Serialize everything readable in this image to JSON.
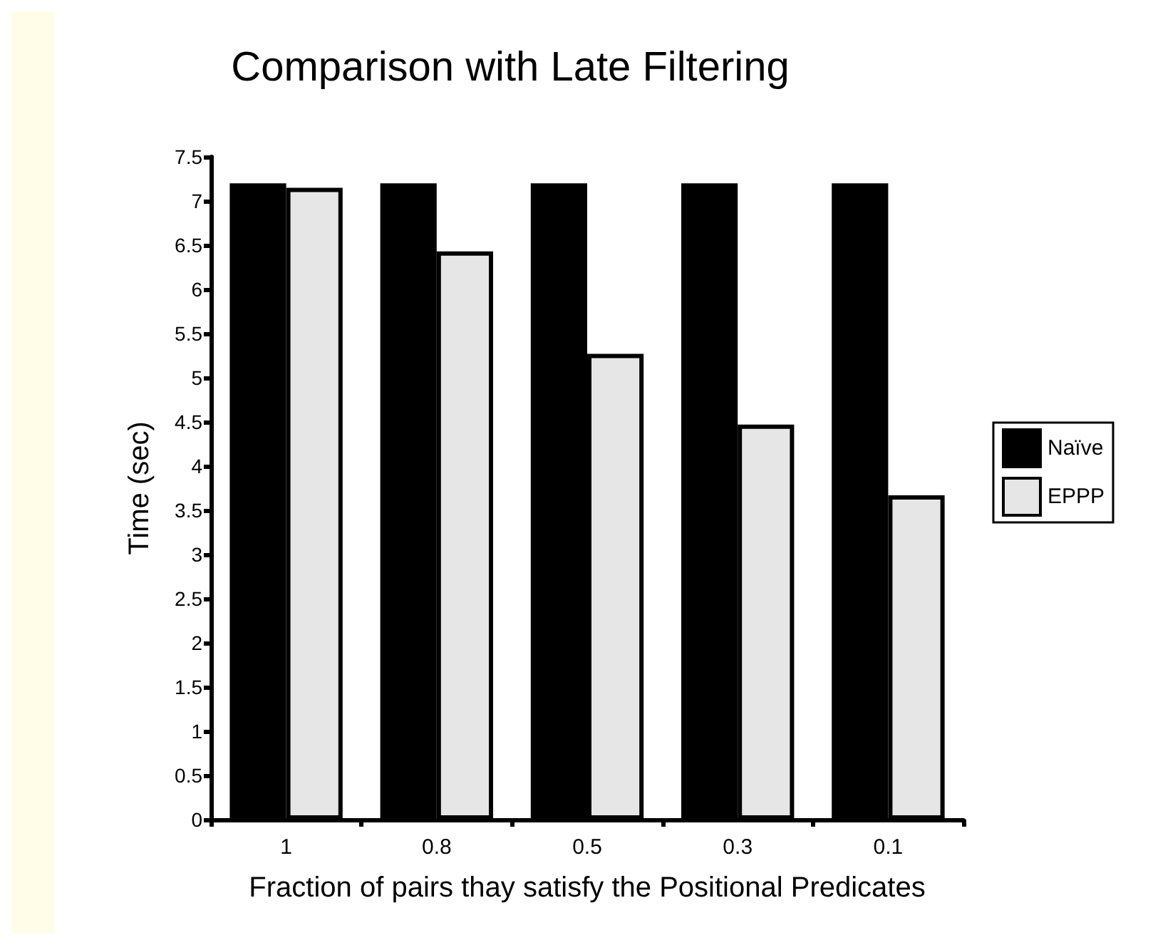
{
  "chart_data": {
    "type": "bar",
    "title": "Comparison with Late Filtering",
    "xlabel": "Fraction of pairs thay satisfy the Positional Predicates",
    "ylabel": "Time (sec)",
    "categories": [
      "1",
      "0.8",
      "0.5",
      "0.3",
      "0.1"
    ],
    "series": [
      {
        "name": "Naïve",
        "color": "#000000",
        "values": [
          7.2,
          7.2,
          7.2,
          7.2,
          7.2
        ]
      },
      {
        "name": "EPPP",
        "color": "#e6e6e6",
        "values": [
          7.15,
          6.43,
          5.27,
          4.47,
          3.67
        ]
      }
    ],
    "ylim": [
      0,
      7.5
    ],
    "yticks": [
      0,
      0.5,
      1,
      1.5,
      2,
      2.5,
      3,
      3.5,
      4,
      4.5,
      5,
      5.5,
      6,
      6.5,
      7,
      7.5
    ],
    "grid": false,
    "legend": "right"
  }
}
